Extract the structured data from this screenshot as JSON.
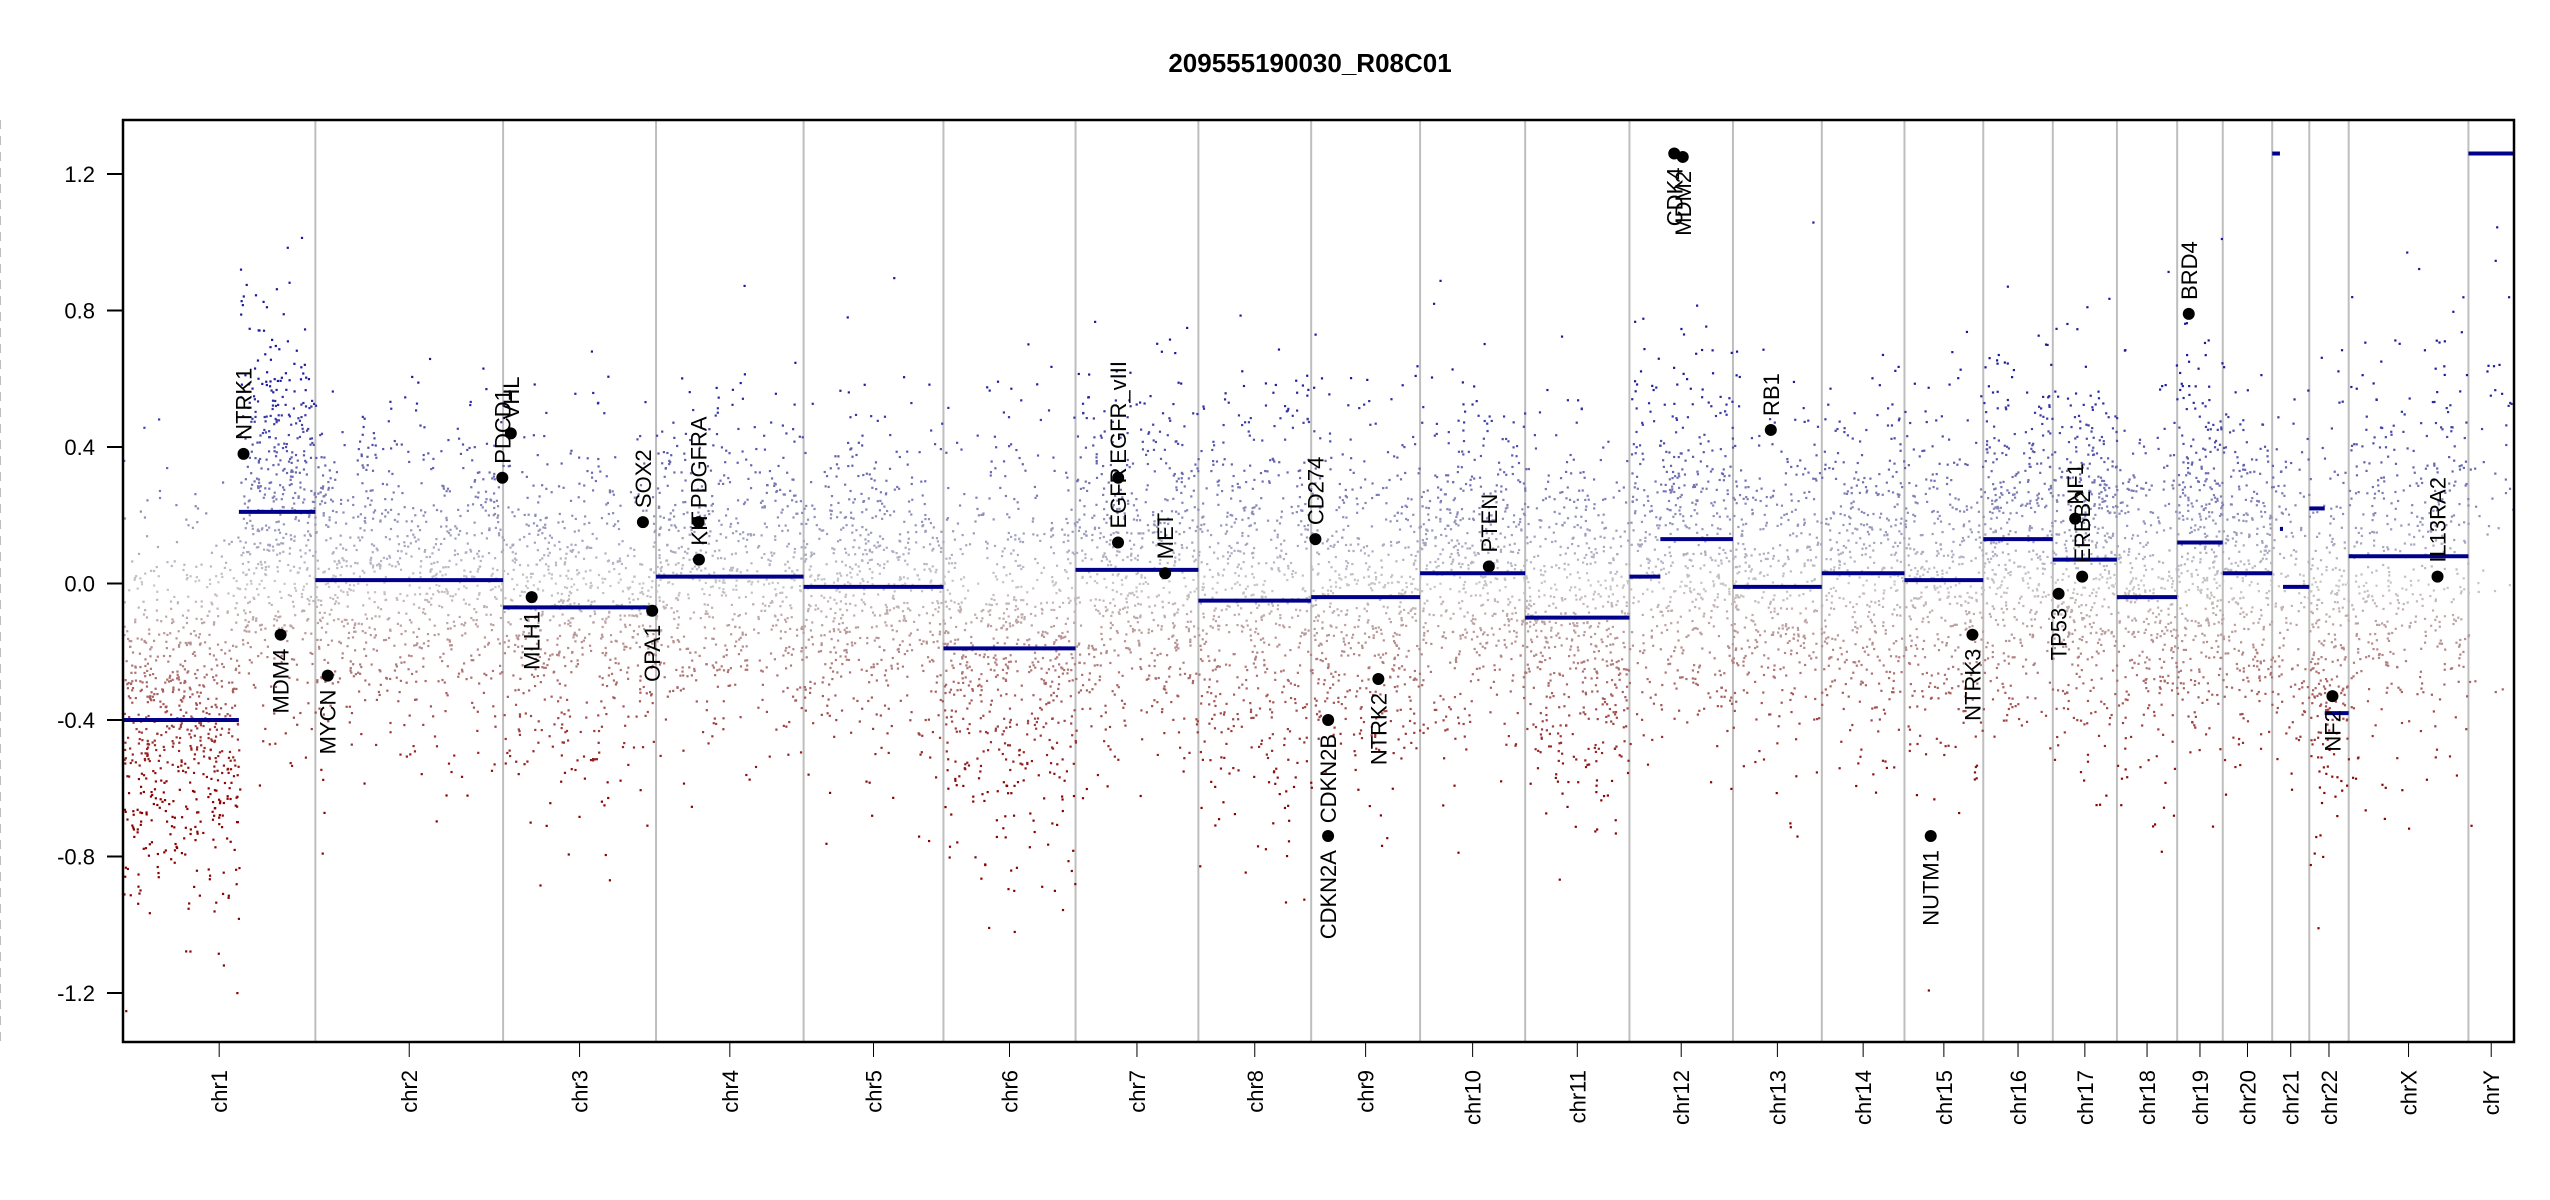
{
  "chart_data": {
    "type": "scatter",
    "title": "209555190030_R08C01",
    "xlabel": "",
    "ylabel": "",
    "ylim": [
      -1.3,
      1.35
    ],
    "yticks": [
      "1.2",
      "0.8",
      "0.4",
      "0.0",
      "-0.4",
      "-0.8",
      "-1.2"
    ],
    "ytick_values": [
      1.2,
      0.8,
      0.4,
      0.0,
      -0.4,
      -0.8,
      -1.2
    ],
    "grid": false,
    "colors": {
      "gain": "#1a1a9e",
      "neutral": "#c8c8c8",
      "loss": "#8b0000",
      "segment": "#00008b",
      "gene_point": "#000000",
      "boundary": "#bebebe",
      "centromere": "#bebebe"
    },
    "chromosomes": [
      {
        "name": "chr1",
        "length_mb": 249,
        "centromere_mb": 125
      },
      {
        "name": "chr2",
        "length_mb": 243,
        "centromere_mb": 93
      },
      {
        "name": "chr3",
        "length_mb": 198,
        "centromere_mb": 91
      },
      {
        "name": "chr4",
        "length_mb": 191,
        "centromere_mb": 50
      },
      {
        "name": "chr5",
        "length_mb": 181,
        "centromere_mb": 48
      },
      {
        "name": "chr6",
        "length_mb": 171,
        "centromere_mb": 60
      },
      {
        "name": "chr7",
        "length_mb": 159,
        "centromere_mb": 60
      },
      {
        "name": "chr8",
        "length_mb": 146,
        "centromere_mb": 45
      },
      {
        "name": "chr9",
        "length_mb": 141,
        "centromere_mb": 49
      },
      {
        "name": "chr10",
        "length_mb": 136,
        "centromere_mb": 40
      },
      {
        "name": "chr11",
        "length_mb": 135,
        "centromere_mb": 53
      },
      {
        "name": "chr12",
        "length_mb": 134,
        "centromere_mb": 35
      },
      {
        "name": "chr13",
        "length_mb": 115,
        "centromere_mb": 17
      },
      {
        "name": "chr14",
        "length_mb": 107,
        "centromere_mb": 17
      },
      {
        "name": "chr15",
        "length_mb": 102,
        "centromere_mb": 19
      },
      {
        "name": "chr16",
        "length_mb": 90,
        "centromere_mb": 36
      },
      {
        "name": "chr17",
        "length_mb": 83,
        "centromere_mb": 24
      },
      {
        "name": "chr18",
        "length_mb": 78,
        "centromere_mb": 17
      },
      {
        "name": "chr19",
        "length_mb": 59,
        "centromere_mb": 26
      },
      {
        "name": "chr20",
        "length_mb": 64,
        "centromere_mb": 28
      },
      {
        "name": "chr21",
        "length_mb": 48,
        "centromere_mb": 13
      },
      {
        "name": "chr22",
        "length_mb": 51,
        "centromere_mb": 14
      },
      {
        "name": "chrX",
        "length_mb": 155,
        "centromere_mb": 60
      },
      {
        "name": "chrY",
        "length_mb": 59,
        "centromere_mb": 12
      }
    ],
    "segments": [
      {
        "chr": "chr1",
        "start_mb": 0,
        "end_mb": 150,
        "value": -0.4
      },
      {
        "chr": "chr1",
        "start_mb": 150,
        "end_mb": 249,
        "value": 0.21
      },
      {
        "chr": "chr2",
        "start_mb": 0,
        "end_mb": 243,
        "value": 0.01
      },
      {
        "chr": "chr3",
        "start_mb": 0,
        "end_mb": 198,
        "value": -0.07
      },
      {
        "chr": "chr4",
        "start_mb": 0,
        "end_mb": 191,
        "value": 0.02
      },
      {
        "chr": "chr5",
        "start_mb": 0,
        "end_mb": 181,
        "value": -0.01
      },
      {
        "chr": "chr6",
        "start_mb": 0,
        "end_mb": 171,
        "value": -0.19
      },
      {
        "chr": "chr7",
        "start_mb": 0,
        "end_mb": 159,
        "value": 0.04
      },
      {
        "chr": "chr8",
        "start_mb": 0,
        "end_mb": 146,
        "value": -0.05
      },
      {
        "chr": "chr9",
        "start_mb": 0,
        "end_mb": 141,
        "value": -0.04
      },
      {
        "chr": "chr10",
        "start_mb": 0,
        "end_mb": 136,
        "value": 0.03
      },
      {
        "chr": "chr11",
        "start_mb": 0,
        "end_mb": 135,
        "value": -0.1
      },
      {
        "chr": "chr12",
        "start_mb": 0,
        "end_mb": 40,
        "value": 0.02
      },
      {
        "chr": "chr12",
        "start_mb": 55,
        "end_mb": 59,
        "value": 1.26
      },
      {
        "chr": "chr12",
        "start_mb": 68,
        "end_mb": 70,
        "value": 1.26
      },
      {
        "chr": "chr12",
        "start_mb": 40,
        "end_mb": 134,
        "value": 0.13
      },
      {
        "chr": "chr13",
        "start_mb": 0,
        "end_mb": 115,
        "value": -0.01
      },
      {
        "chr": "chr14",
        "start_mb": 0,
        "end_mb": 107,
        "value": 0.03
      },
      {
        "chr": "chr15",
        "start_mb": 0,
        "end_mb": 102,
        "value": 0.01
      },
      {
        "chr": "chr16",
        "start_mb": 0,
        "end_mb": 90,
        "value": 0.13
      },
      {
        "chr": "chr17",
        "start_mb": 0,
        "end_mb": 83,
        "value": 0.07
      },
      {
        "chr": "chr18",
        "start_mb": 0,
        "end_mb": 78,
        "value": -0.04
      },
      {
        "chr": "chr19",
        "start_mb": 0,
        "end_mb": 59,
        "value": 0.12
      },
      {
        "chr": "chr20",
        "start_mb": 0,
        "end_mb": 64,
        "value": 0.03
      },
      {
        "chr": "chr21",
        "start_mb": 0,
        "end_mb": 10,
        "value": 1.26
      },
      {
        "chr": "chr21",
        "start_mb": 10,
        "end_mb": 14,
        "value": 0.16
      },
      {
        "chr": "chr21",
        "start_mb": 14,
        "end_mb": 48,
        "value": -0.01
      },
      {
        "chr": "chr22",
        "start_mb": 0,
        "end_mb": 20,
        "value": 0.22
      },
      {
        "chr": "chr22",
        "start_mb": 20,
        "end_mb": 51,
        "value": -0.38
      },
      {
        "chr": "chrX",
        "start_mb": 0,
        "end_mb": 155,
        "value": 0.08
      },
      {
        "chr": "chrY",
        "start_mb": 0,
        "end_mb": 59,
        "value": 1.26
      }
    ],
    "genes": [
      {
        "name": "NTRK1",
        "chr": "chr1",
        "pos_mb": 156,
        "value": 0.38,
        "label_side": "above"
      },
      {
        "name": "MDM4",
        "chr": "chr1",
        "pos_mb": 204,
        "value": -0.15,
        "label_side": "below"
      },
      {
        "name": "MYCN",
        "chr": "chr2",
        "pos_mb": 16,
        "value": -0.27,
        "label_side": "below"
      },
      {
        "name": "PDCD1",
        "chr": "chr2",
        "pos_mb": 242,
        "value": 0.31,
        "label_side": "above"
      },
      {
        "name": "VHL",
        "chr": "chr3",
        "pos_mb": 10,
        "value": 0.44,
        "label_side": "above"
      },
      {
        "name": "MLH1",
        "chr": "chr3",
        "pos_mb": 37,
        "value": -0.04,
        "label_side": "below"
      },
      {
        "name": "SOX2",
        "chr": "chr3",
        "pos_mb": 181,
        "value": 0.18,
        "label_side": "above"
      },
      {
        "name": "OPA1",
        "chr": "chr3",
        "pos_mb": 193,
        "value": -0.08,
        "label_side": "below"
      },
      {
        "name": "PDGFRA",
        "chr": "chr4",
        "pos_mb": 55,
        "value": 0.18,
        "label_side": "above"
      },
      {
        "name": "KIT",
        "chr": "chr4",
        "pos_mb": 55.5,
        "value": 0.07,
        "label_side": "above"
      },
      {
        "name": "EGFR",
        "chr": "chr7",
        "pos_mb": 55,
        "value": 0.12,
        "label_side": "above"
      },
      {
        "name": "EGFR_vIII",
        "chr": "chr7",
        "pos_mb": 55.2,
        "value": 0.31,
        "label_side": "above"
      },
      {
        "name": "MET",
        "chr": "chr7",
        "pos_mb": 116,
        "value": 0.03,
        "label_side": "above"
      },
      {
        "name": "CD274",
        "chr": "chr9",
        "pos_mb": 5.5,
        "value": 0.13,
        "label_side": "above"
      },
      {
        "name": "CDKN2A",
        "chr": "chr9",
        "pos_mb": 21.9,
        "value": -0.74,
        "label_side": "below"
      },
      {
        "name": "CDKN2B",
        "chr": "chr9",
        "pos_mb": 22,
        "value": -0.4,
        "label_side": "below"
      },
      {
        "name": "NTRK2",
        "chr": "chr9",
        "pos_mb": 87,
        "value": -0.28,
        "label_side": "below"
      },
      {
        "name": "PTEN",
        "chr": "chr10",
        "pos_mb": 89,
        "value": 0.05,
        "label_side": "above"
      },
      {
        "name": "CDK4",
        "chr": "chr12",
        "pos_mb": 58,
        "value": 1.26,
        "label_side": "below"
      },
      {
        "name": "MDM2",
        "chr": "chr12",
        "pos_mb": 69,
        "value": 1.25,
        "label_side": "below"
      },
      {
        "name": "RB1",
        "chr": "chr13",
        "pos_mb": 49,
        "value": 0.45,
        "label_side": "above"
      },
      {
        "name": "NUTM1",
        "chr": "chr15",
        "pos_mb": 34,
        "value": -0.74,
        "label_side": "below"
      },
      {
        "name": "NTRK3",
        "chr": "chr15",
        "pos_mb": 88,
        "value": -0.15,
        "label_side": "below"
      },
      {
        "name": "TP53",
        "chr": "chr17",
        "pos_mb": 7.5,
        "value": -0.03,
        "label_side": "below"
      },
      {
        "name": "NF1",
        "chr": "chr17",
        "pos_mb": 29,
        "value": 0.19,
        "label_side": "above"
      },
      {
        "name": "ERBB2",
        "chr": "chr17",
        "pos_mb": 38,
        "value": 0.02,
        "label_side": "above"
      },
      {
        "name": "BRD4",
        "chr": "chr19",
        "pos_mb": 15,
        "value": 0.79,
        "label_side": "above"
      },
      {
        "name": "NF2",
        "chr": "chr22",
        "pos_mb": 30,
        "value": -0.33,
        "label_side": "below"
      },
      {
        "name": "IL13RA2",
        "chrX": true,
        "chr": "chrX",
        "pos_mb": 115,
        "value": 0.02,
        "label_side": "above"
      }
    ],
    "probe_density": {
      "description": "per-chromosome scatter of probe log2 ratios, colored by value",
      "per_chromosome": [
        {
          "chr": "chr1",
          "mean": -0.4,
          "mean_q": 0.21,
          "split_mb": 150,
          "spread": 0.28,
          "n": 1200
        },
        {
          "chr": "chr2",
          "mean": 0.01,
          "spread": 0.24,
          "n": 800
        },
        {
          "chr": "chr3",
          "mean": -0.07,
          "spread": 0.24,
          "n": 650
        },
        {
          "chr": "chr4",
          "mean": 0.02,
          "spread": 0.24,
          "n": 600
        },
        {
          "chr": "chr5",
          "mean": -0.01,
          "spread": 0.24,
          "n": 600
        },
        {
          "chr": "chr6",
          "mean": -0.19,
          "spread": 0.3,
          "n": 650
        },
        {
          "chr": "chr7",
          "mean": 0.04,
          "spread": 0.26,
          "n": 600
        },
        {
          "chr": "chr8",
          "mean": -0.05,
          "spread": 0.3,
          "n": 550
        },
        {
          "chr": "chr9",
          "mean": -0.04,
          "spread": 0.26,
          "n": 500
        },
        {
          "chr": "chr10",
          "mean": 0.03,
          "spread": 0.24,
          "n": 500
        },
        {
          "chr": "chr11",
          "mean": -0.1,
          "spread": 0.26,
          "n": 550
        },
        {
          "chr": "chr12",
          "mean": 0.1,
          "spread": 0.25,
          "n": 500
        },
        {
          "chr": "chr13",
          "mean": -0.01,
          "spread": 0.25,
          "n": 380
        },
        {
          "chr": "chr14",
          "mean": 0.03,
          "spread": 0.25,
          "n": 380
        },
        {
          "chr": "chr15",
          "mean": 0.01,
          "spread": 0.25,
          "n": 360
        },
        {
          "chr": "chr16",
          "mean": 0.13,
          "spread": 0.26,
          "n": 380
        },
        {
          "chr": "chr17",
          "mean": 0.07,
          "spread": 0.27,
          "n": 420
        },
        {
          "chr": "chr18",
          "mean": -0.04,
          "spread": 0.25,
          "n": 300
        },
        {
          "chr": "chr19",
          "mean": 0.12,
          "spread": 0.27,
          "n": 320
        },
        {
          "chr": "chr20",
          "mean": 0.03,
          "spread": 0.25,
          "n": 260
        },
        {
          "chr": "chr21",
          "mean": -0.01,
          "spread": 0.25,
          "n": 120
        },
        {
          "chr": "chr22",
          "mean": -0.15,
          "spread": 0.3,
          "n": 220
        },
        {
          "chr": "chrX",
          "mean": 0.08,
          "spread": 0.28,
          "n": 450
        },
        {
          "chr": "chrY",
          "mean": 0.2,
          "spread": 0.3,
          "n": 40
        }
      ]
    }
  }
}
